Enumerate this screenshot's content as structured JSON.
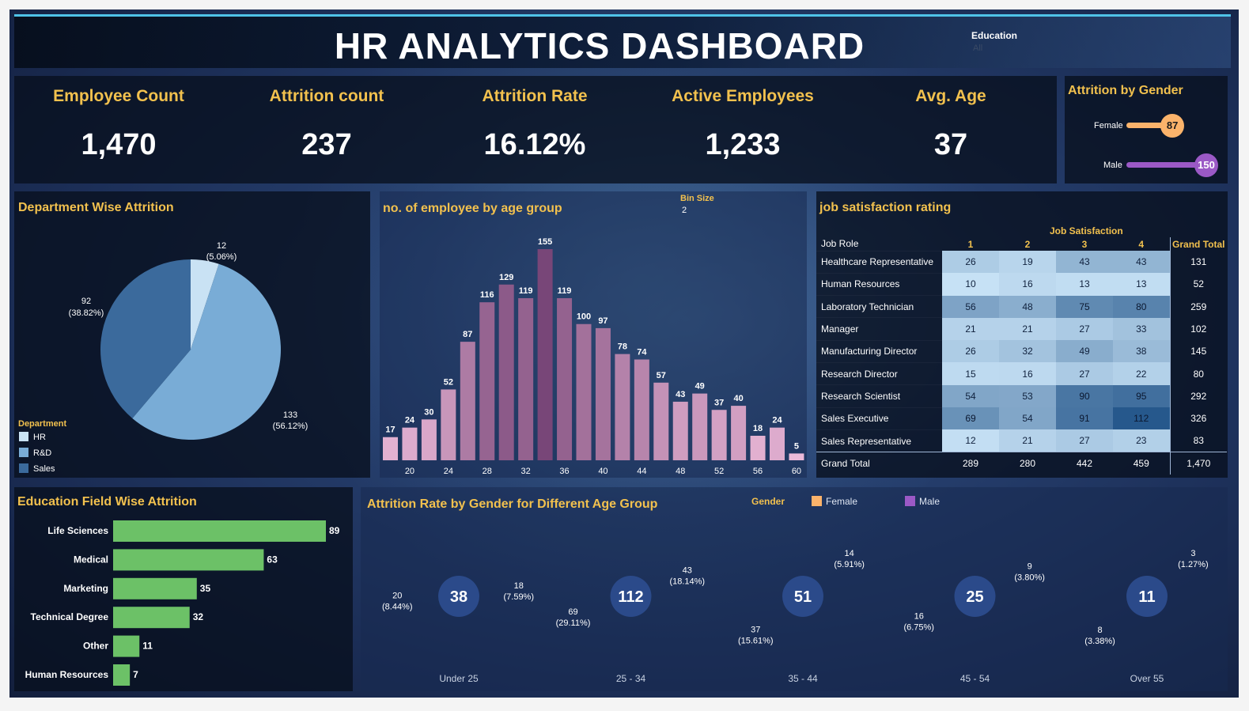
{
  "header": {
    "title": "HR ANALYTICS DASHBOARD",
    "filter_label": "Education",
    "filter_value": "All"
  },
  "kpis": [
    {
      "label": "Employee Count",
      "value": "1,470"
    },
    {
      "label": "Attrition count",
      "value": "237"
    },
    {
      "label": "Attrition Rate",
      "value": "16.12%"
    },
    {
      "label": "Active Employees",
      "value": "1,233"
    },
    {
      "label": "Avg. Age",
      "value": "37"
    }
  ],
  "colors": {
    "gold": "#f2c14e",
    "female": "#fbb36b",
    "male": "#9b59c6",
    "hr": "#c9e2f4",
    "rd": "#79acd6",
    "sales": "#3b6a9c",
    "edu_bar": "#6cc167"
  },
  "chart_data": [
    {
      "id": "gender",
      "type": "bar",
      "title": "Attrition by Gender",
      "categories": [
        "Female",
        "Male"
      ],
      "values": [
        87,
        150
      ],
      "value_labels": [
        "87",
        "150"
      ]
    },
    {
      "id": "department",
      "type": "pie",
      "title": "Department Wise Attrition",
      "legend_title": "Department",
      "legend_position": "bottom-left",
      "categories": [
        "HR",
        "R&D",
        "Sales"
      ],
      "values": [
        12,
        133,
        92
      ],
      "labels": [
        {
          "value": "12",
          "pct": "(5.06%)"
        },
        {
          "value": "133",
          "pct": "(56.12%)"
        },
        {
          "value": "92",
          "pct": "(38.82%)"
        }
      ]
    },
    {
      "id": "age_group",
      "type": "bar",
      "title": "no. of employee by age group",
      "parameter_label": "Bin Size",
      "parameter_value": "2",
      "x": [
        18,
        20,
        22,
        24,
        26,
        28,
        30,
        32,
        34,
        36,
        38,
        40,
        42,
        44,
        46,
        48,
        50,
        52,
        54,
        56,
        58,
        60
      ],
      "values": [
        17,
        24,
        30,
        52,
        87,
        116,
        129,
        119,
        155,
        119,
        100,
        97,
        78,
        74,
        57,
        43,
        49,
        37,
        40,
        18,
        24,
        5
      ],
      "value_labels": [
        "17",
        "24",
        "30",
        "52",
        "87",
        "116",
        "129",
        "119",
        "155",
        "119",
        "100",
        "97",
        "78",
        "74",
        "57",
        "43",
        "49",
        "37",
        "40",
        "18",
        "24",
        "5"
      ],
      "tick_labels": [
        "20",
        "24",
        "28",
        "32",
        "36",
        "40",
        "44",
        "48",
        "52",
        "56",
        "60"
      ],
      "ylim": [
        0,
        155
      ]
    },
    {
      "id": "job_satisfaction",
      "type": "heatmap",
      "title": "job satisfaction rating",
      "column_header": "Job Satisfaction",
      "row_header": "Job Role",
      "columns": [
        "1",
        "2",
        "3",
        "4"
      ],
      "total_label": "Grand Total",
      "rows": [
        {
          "role": "Healthcare Representative",
          "values": [
            "26",
            "19",
            "43",
            "43"
          ],
          "total": "131"
        },
        {
          "role": "Human Resources",
          "values": [
            "10",
            "16",
            "13",
            "13"
          ],
          "total": "52"
        },
        {
          "role": "Laboratory Technician",
          "values": [
            "56",
            "48",
            "75",
            "80"
          ],
          "total": "259"
        },
        {
          "role": "Manager",
          "values": [
            "21",
            "21",
            "27",
            "33"
          ],
          "total": "102"
        },
        {
          "role": "Manufacturing Director",
          "values": [
            "26",
            "32",
            "49",
            "38"
          ],
          "total": "145"
        },
        {
          "role": "Research Director",
          "values": [
            "15",
            "16",
            "27",
            "22"
          ],
          "total": "80"
        },
        {
          "role": "Research Scientist",
          "values": [
            "54",
            "53",
            "90",
            "95"
          ],
          "total": "292"
        },
        {
          "role": "Sales Executive",
          "values": [
            "69",
            "54",
            "91",
            "112"
          ],
          "total": "326"
        },
        {
          "role": "Sales Representative",
          "values": [
            "12",
            "21",
            "27",
            "23"
          ],
          "total": "83"
        }
      ],
      "totals": {
        "label": "Grand Total",
        "values": [
          "289",
          "280",
          "442",
          "459"
        ],
        "total": "1,470"
      }
    },
    {
      "id": "education_field",
      "type": "bar",
      "title": "Education Field Wise Attrition",
      "orientation": "horizontal",
      "categories": [
        "Life Sciences",
        "Medical",
        "Marketing",
        "Technical Degree",
        "Other",
        "Human Resources"
      ],
      "values": [
        89,
        63,
        35,
        32,
        11,
        7
      ],
      "value_labels": [
        "89",
        "63",
        "35",
        "32",
        "11",
        "7"
      ]
    },
    {
      "id": "gender_age",
      "type": "pie",
      "title": "Attrition Rate by Gender for Different Age Group",
      "legend_title": "Gender",
      "legend": [
        "Female",
        "Male"
      ],
      "legend_position": "top-right",
      "groups": [
        {
          "label": "Under 25",
          "total": "38",
          "female": 18,
          "male": 20,
          "female_label": "18",
          "female_pct": "(7.59%)",
          "male_label": "20",
          "male_pct": "(8.44%)"
        },
        {
          "label": "25 - 34",
          "total": "112",
          "female": 43,
          "male": 69,
          "female_label": "43",
          "female_pct": "(18.14%)",
          "male_label": "69",
          "male_pct": "(29.11%)"
        },
        {
          "label": "35 - 44",
          "total": "51",
          "female": 14,
          "male": 37,
          "female_label": "14",
          "female_pct": "(5.91%)",
          "male_label": "37",
          "male_pct": "(15.61%)"
        },
        {
          "label": "45 - 54",
          "total": "25",
          "female": 9,
          "male": 16,
          "female_label": "9",
          "female_pct": "(3.80%)",
          "male_label": "16",
          "male_pct": "(6.75%)"
        },
        {
          "label": "Over 55",
          "total": "11",
          "female": 3,
          "male": 8,
          "female_label": "3",
          "female_pct": "(1.27%)",
          "male_label": "8",
          "male_pct": "(3.38%)"
        }
      ]
    }
  ]
}
